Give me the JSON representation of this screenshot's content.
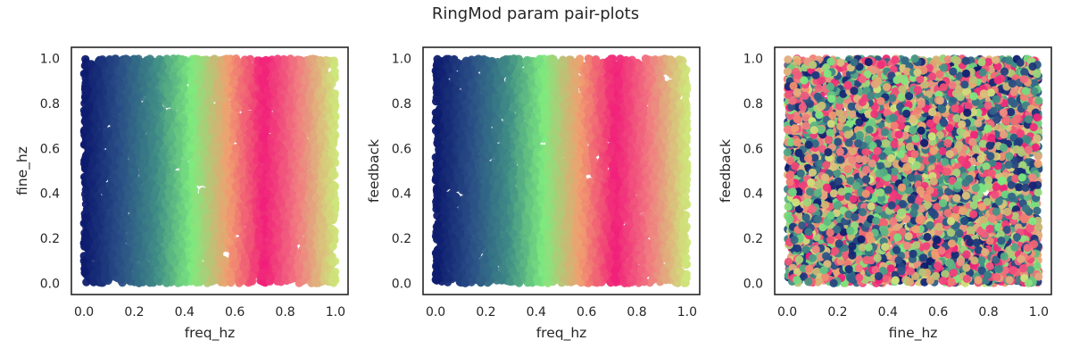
{
  "figure": {
    "title": "RingMod param pair-plots"
  },
  "colormap": [
    "#0d1a6e",
    "#2a4f86",
    "#3f8b86",
    "#7eea7e",
    "#f0a070",
    "#f0207a",
    "#f08080",
    "#cde87a"
  ],
  "chart_data": [
    {
      "type": "scatter",
      "title": "",
      "xlabel": "freq_hz",
      "ylabel": "fine_hz",
      "xlim": [
        -0.05,
        1.05
      ],
      "ylim": [
        -0.05,
        1.05
      ],
      "xticks": [
        "0.0",
        "0.2",
        "0.4",
        "0.6",
        "0.8",
        "1.0"
      ],
      "yticks": [
        "0.0",
        "0.2",
        "0.4",
        "0.6",
        "0.8",
        "1.0"
      ],
      "point_count": 7000,
      "x_distribution": "uniform [0, 1]",
      "y_distribution": "uniform [0, 1]",
      "color_by": "x",
      "grid": false
    },
    {
      "type": "scatter",
      "title": "",
      "xlabel": "freq_hz",
      "ylabel": "feedback",
      "xlim": [
        -0.05,
        1.05
      ],
      "ylim": [
        -0.05,
        1.05
      ],
      "xticks": [
        "0.0",
        "0.2",
        "0.4",
        "0.6",
        "0.8",
        "1.0"
      ],
      "yticks": [
        "0.0",
        "0.2",
        "0.4",
        "0.6",
        "0.8",
        "1.0"
      ],
      "point_count": 7000,
      "x_distribution": "uniform [0, 1]",
      "y_distribution": "uniform [0, 1]",
      "color_by": "x",
      "grid": false
    },
    {
      "type": "scatter",
      "title": "",
      "xlabel": "fine_hz",
      "ylabel": "feedback",
      "xlim": [
        -0.05,
        1.05
      ],
      "ylim": [
        -0.05,
        1.05
      ],
      "xticks": [
        "0.0",
        "0.2",
        "0.4",
        "0.6",
        "0.8",
        "1.0"
      ],
      "yticks": [
        "0.0",
        "0.2",
        "0.4",
        "0.6",
        "0.8",
        "1.0"
      ],
      "point_count": 7000,
      "x_distribution": "uniform [0, 1]",
      "y_distribution": "uniform [0, 1]",
      "color_by": "freq_hz (random with respect to axes)",
      "grid": false
    }
  ]
}
